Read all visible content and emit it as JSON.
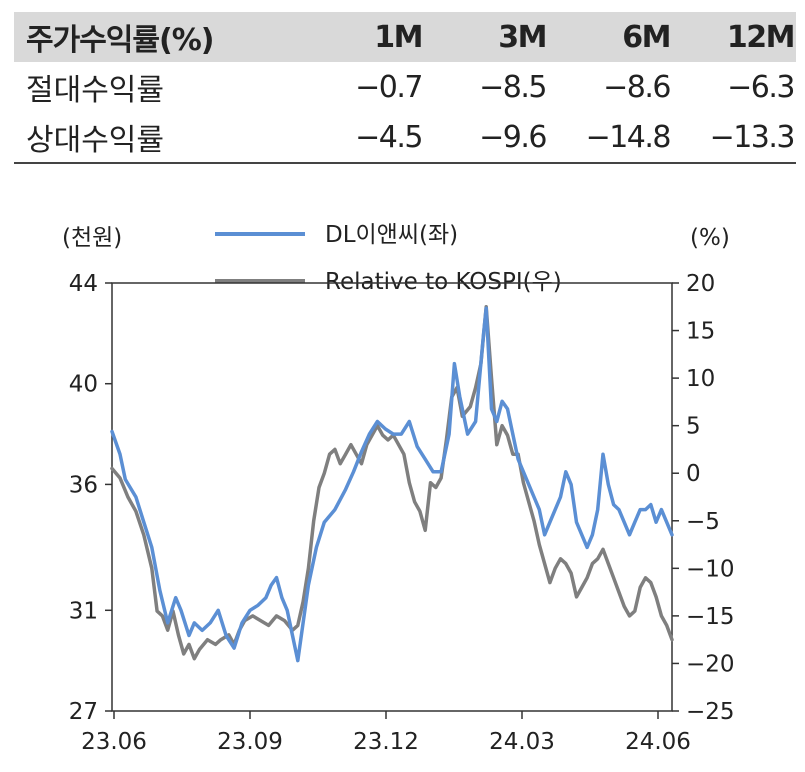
{
  "table": {
    "headers": [
      "주가수익률(%)",
      "1M",
      "3M",
      "6M",
      "12M"
    ],
    "rows": [
      {
        "label": "절대수익률",
        "values": [
          "−0.7",
          "−8.5",
          "−8.6",
          "−6.3"
        ]
      },
      {
        "label": "상대수익률",
        "values": [
          "−4.5",
          "−9.6",
          "−14.8",
          "−13.3"
        ]
      }
    ]
  },
  "chart_data": {
    "type": "line",
    "left_unit": "(천원)",
    "right_unit": "(%)",
    "x_ticks": [
      "23.06",
      "23.09",
      "23.12",
      "24.03",
      "24.06"
    ],
    "y_left": {
      "min": 27,
      "max": 44,
      "ticks": [
        "44",
        "40",
        "36",
        "31",
        "27"
      ]
    },
    "y_right": {
      "min": -25,
      "max": 20,
      "ticks": [
        "20",
        "15",
        "10",
        "5",
        "0",
        "−5",
        "−10",
        "−15",
        "−20",
        "−25"
      ]
    },
    "series": [
      {
        "name": "DL이앤씨(좌)",
        "axis": "left",
        "color": "#5b8fd4",
        "points": [
          [
            0,
            38.1
          ],
          [
            3,
            37.2
          ],
          [
            5,
            36.2
          ],
          [
            9,
            35.5
          ],
          [
            12,
            34.5
          ],
          [
            15,
            33.5
          ],
          [
            18,
            31.8
          ],
          [
            21,
            30.5
          ],
          [
            24,
            31.5
          ],
          [
            26,
            31.0
          ],
          [
            29,
            30.0
          ],
          [
            31,
            30.5
          ],
          [
            34,
            30.2
          ],
          [
            37,
            30.5
          ],
          [
            40,
            31.0
          ],
          [
            43,
            30.0
          ],
          [
            46,
            29.5
          ],
          [
            49,
            30.5
          ],
          [
            52,
            31.0
          ],
          [
            55,
            31.2
          ],
          [
            58,
            31.5
          ],
          [
            60,
            32.0
          ],
          [
            62,
            32.3
          ],
          [
            64,
            31.5
          ],
          [
            66,
            31.0
          ],
          [
            68,
            30.0
          ],
          [
            70,
            29.0
          ],
          [
            72,
            30.5
          ],
          [
            74,
            32.0
          ],
          [
            77,
            33.5
          ],
          [
            80,
            34.5
          ],
          [
            84,
            35.0
          ],
          [
            88,
            35.8
          ],
          [
            91,
            36.5
          ],
          [
            94,
            37.3
          ],
          [
            97,
            38.0
          ],
          [
            100,
            38.5
          ],
          [
            103,
            38.2
          ],
          [
            106,
            38.0
          ],
          [
            109,
            38.0
          ],
          [
            112,
            38.5
          ],
          [
            115,
            37.5
          ],
          [
            118,
            37.0
          ],
          [
            121,
            36.5
          ],
          [
            124,
            36.5
          ],
          [
            127,
            38.0
          ],
          [
            129,
            40.8
          ],
          [
            131,
            39.5
          ],
          [
            134,
            38.0
          ],
          [
            137,
            38.5
          ],
          [
            140,
            42.0
          ],
          [
            141,
            43.0
          ],
          [
            143,
            39.0
          ],
          [
            145,
            38.5
          ],
          [
            147,
            39.3
          ],
          [
            149,
            39.0
          ],
          [
            151,
            38.0
          ],
          [
            153,
            37.0
          ],
          [
            155,
            36.5
          ],
          [
            157,
            36.0
          ],
          [
            159,
            35.5
          ],
          [
            161,
            35.0
          ],
          [
            163,
            34.0
          ],
          [
            165,
            34.5
          ],
          [
            167,
            35.0
          ],
          [
            169,
            35.5
          ],
          [
            171,
            36.5
          ],
          [
            173,
            36.0
          ],
          [
            175,
            34.5
          ],
          [
            177,
            34.0
          ],
          [
            179,
            33.5
          ],
          [
            181,
            34.0
          ],
          [
            183,
            35.0
          ],
          [
            185,
            37.2
          ],
          [
            187,
            36.0
          ],
          [
            189,
            35.2
          ],
          [
            191,
            35.0
          ],
          [
            193,
            34.5
          ],
          [
            195,
            34.0
          ],
          [
            197,
            34.5
          ],
          [
            199,
            35.0
          ],
          [
            201,
            35.0
          ],
          [
            203,
            35.2
          ],
          [
            205,
            34.5
          ],
          [
            207,
            35.0
          ],
          [
            209,
            34.5
          ],
          [
            211,
            34.0
          ]
        ]
      },
      {
        "name": "Relative to KOSPI(우)",
        "axis": "right",
        "color": "#7f7f7f",
        "points": [
          [
            0,
            0.5
          ],
          [
            3,
            -0.5
          ],
          [
            6,
            -2.5
          ],
          [
            9,
            -4
          ],
          [
            12,
            -6.5
          ],
          [
            15,
            -10
          ],
          [
            17,
            -14.5
          ],
          [
            19,
            -15
          ],
          [
            21,
            -16.5
          ],
          [
            23,
            -14.5
          ],
          [
            25,
            -17
          ],
          [
            27,
            -19
          ],
          [
            29,
            -18
          ],
          [
            31,
            -19.5
          ],
          [
            33,
            -18.5
          ],
          [
            36,
            -17.5
          ],
          [
            39,
            -18
          ],
          [
            41,
            -17.5
          ],
          [
            44,
            -17
          ],
          [
            46,
            -18
          ],
          [
            48,
            -16.5
          ],
          [
            50,
            -15.5
          ],
          [
            53,
            -15
          ],
          [
            56,
            -15.5
          ],
          [
            59,
            -16
          ],
          [
            62,
            -15
          ],
          [
            65,
            -15.5
          ],
          [
            68,
            -16.5
          ],
          [
            70,
            -16
          ],
          [
            72,
            -13.5
          ],
          [
            74,
            -10
          ],
          [
            76,
            -5
          ],
          [
            78,
            -1.5
          ],
          [
            80,
            0
          ],
          [
            82,
            2
          ],
          [
            84,
            2.5
          ],
          [
            86,
            1
          ],
          [
            88,
            2
          ],
          [
            90,
            3
          ],
          [
            92,
            2
          ],
          [
            94,
            1
          ],
          [
            96,
            3
          ],
          [
            98,
            4
          ],
          [
            100,
            5
          ],
          [
            102,
            4
          ],
          [
            104,
            3.5
          ],
          [
            106,
            4
          ],
          [
            108,
            3
          ],
          [
            110,
            2
          ],
          [
            112,
            -1
          ],
          [
            114,
            -3
          ],
          [
            116,
            -4
          ],
          [
            118,
            -6
          ],
          [
            120,
            -1
          ],
          [
            122,
            -1.5
          ],
          [
            124,
            -0.5
          ],
          [
            126,
            3.5
          ],
          [
            128,
            8
          ],
          [
            130,
            9
          ],
          [
            132,
            6
          ],
          [
            135,
            7
          ],
          [
            137,
            9
          ],
          [
            139,
            11.5
          ],
          [
            141,
            17.5
          ],
          [
            143,
            10
          ],
          [
            145,
            3
          ],
          [
            147,
            5
          ],
          [
            149,
            4
          ],
          [
            151,
            2
          ],
          [
            153,
            2
          ],
          [
            155,
            -1
          ],
          [
            157,
            -3
          ],
          [
            159,
            -5
          ],
          [
            161,
            -7.5
          ],
          [
            163,
            -9.5
          ],
          [
            165,
            -11.5
          ],
          [
            167,
            -10
          ],
          [
            169,
            -9
          ],
          [
            171,
            -9.5
          ],
          [
            173,
            -10.5
          ],
          [
            175,
            -13
          ],
          [
            177,
            -12
          ],
          [
            179,
            -11
          ],
          [
            181,
            -9.5
          ],
          [
            183,
            -9
          ],
          [
            185,
            -8
          ],
          [
            187,
            -9.5
          ],
          [
            189,
            -11
          ],
          [
            191,
            -12.5
          ],
          [
            193,
            -14
          ],
          [
            195,
            -15
          ],
          [
            197,
            -14.5
          ],
          [
            199,
            -12
          ],
          [
            201,
            -11
          ],
          [
            203,
            -11.5
          ],
          [
            205,
            -13
          ],
          [
            207,
            -15
          ],
          [
            209,
            -16
          ],
          [
            211,
            -17.5
          ]
        ]
      }
    ]
  }
}
